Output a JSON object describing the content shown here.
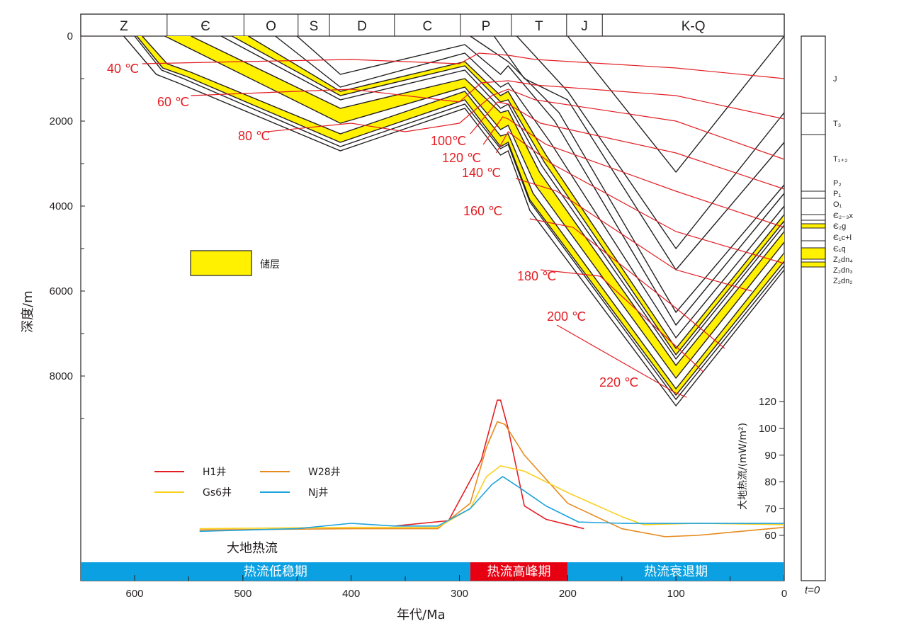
{
  "chart_data": {
    "type": "line",
    "title": "",
    "xlabel": "年代/Ma",
    "ylabel": "深度/m",
    "y2label": "大地热流/(mW/m²)",
    "xlim": [
      650,
      0
    ],
    "ylim": [
      0,
      9000
    ],
    "x_ticks": [
      600,
      500,
      400,
      300,
      200,
      100,
      0
    ],
    "y_ticks": [
      0,
      2000,
      4000,
      6000,
      8000
    ],
    "y2_ticks": [
      60,
      70,
      80,
      90,
      100,
      120
    ],
    "periods": [
      {
        "label": "Z",
        "from": 650,
        "to": 570
      },
      {
        "label": "Є",
        "from": 570,
        "to": 499
      },
      {
        "label": "O",
        "from": 499,
        "to": 449
      },
      {
        "label": "S",
        "from": 449,
        "to": 420
      },
      {
        "label": "D",
        "from": 420,
        "to": 360
      },
      {
        "label": "C",
        "from": 360,
        "to": 299
      },
      {
        "label": "P",
        "from": 299,
        "to": 252
      },
      {
        "label": "T",
        "from": 252,
        "to": 201
      },
      {
        "label": "J",
        "from": 201,
        "to": 168
      },
      {
        "label": "K-Q",
        "from": 168,
        "to": 0
      }
    ],
    "burial_layers": [
      {
        "name": "Z2dn2-base",
        "points": [
          [
            610,
            0
          ],
          [
            580,
            900
          ],
          [
            560,
            1100
          ],
          [
            410,
            2700
          ],
          [
            295,
            1700
          ],
          [
            262,
            2800
          ],
          [
            255,
            2700
          ],
          [
            235,
            4100
          ],
          [
            100,
            8700
          ],
          [
            0,
            5500
          ]
        ]
      },
      {
        "name": "Z2dn3-top",
        "points": [
          [
            600,
            0
          ],
          [
            575,
            800
          ],
          [
            555,
            1000
          ],
          [
            410,
            2600
          ],
          [
            295,
            1600
          ],
          [
            262,
            2650
          ],
          [
            255,
            2550
          ],
          [
            235,
            3900
          ],
          [
            100,
            8550
          ],
          [
            0,
            5400
          ]
        ]
      },
      {
        "name": "Z2dn4-base",
        "points": [
          [
            598,
            0
          ],
          [
            574,
            750
          ],
          [
            552,
            950
          ],
          [
            410,
            2500
          ],
          [
            295,
            1500
          ],
          [
            262,
            2600
          ],
          [
            255,
            2500
          ],
          [
            235,
            3850
          ],
          [
            100,
            8450
          ],
          [
            0,
            5300
          ]
        ]
      },
      {
        "name": "Z2dn4-top",
        "points": [
          [
            593,
            0
          ],
          [
            570,
            650
          ],
          [
            548,
            850
          ],
          [
            410,
            2300
          ],
          [
            295,
            1300
          ],
          [
            262,
            2350
          ],
          [
            255,
            2300
          ],
          [
            232,
            3700
          ],
          [
            100,
            8300
          ],
          [
            0,
            5100
          ]
        ]
      },
      {
        "name": "E1q-base",
        "points": [
          [
            572,
            0
          ],
          [
            410,
            2050
          ],
          [
            295,
            1200
          ],
          [
            262,
            2200
          ],
          [
            255,
            2100
          ],
          [
            230,
            3500
          ],
          [
            100,
            8050
          ],
          [
            0,
            4850
          ]
        ]
      },
      {
        "name": "E1q-top",
        "points": [
          [
            548,
            0
          ],
          [
            410,
            1700
          ],
          [
            295,
            1000
          ],
          [
            262,
            1800
          ],
          [
            255,
            1750
          ],
          [
            226,
            3200
          ],
          [
            100,
            7750
          ],
          [
            0,
            4600
          ]
        ]
      },
      {
        "name": "E1cl-top",
        "points": [
          [
            520,
            0
          ],
          [
            410,
            1500
          ],
          [
            295,
            800
          ],
          [
            262,
            1700
          ],
          [
            255,
            1600
          ],
          [
            224,
            3050
          ],
          [
            100,
            7600
          ],
          [
            0,
            4450
          ]
        ]
      },
      {
        "name": "E2g-base",
        "points": [
          [
            510,
            0
          ],
          [
            410,
            1400
          ],
          [
            295,
            700
          ],
          [
            262,
            1550
          ],
          [
            255,
            1500
          ],
          [
            222,
            2950
          ],
          [
            100,
            7500
          ],
          [
            0,
            4350
          ]
        ]
      },
      {
        "name": "E2g-top",
        "points": [
          [
            495,
            0
          ],
          [
            410,
            1300
          ],
          [
            295,
            600
          ],
          [
            262,
            1400
          ],
          [
            255,
            1300
          ],
          [
            220,
            2800
          ],
          [
            100,
            7350
          ],
          [
            0,
            4200
          ]
        ]
      },
      {
        "name": "E23x-top",
        "points": [
          [
            470,
            0
          ],
          [
            410,
            1200
          ],
          [
            295,
            400
          ],
          [
            262,
            1200
          ],
          [
            255,
            1100
          ],
          [
            216,
            2500
          ],
          [
            100,
            7100
          ],
          [
            0,
            4000
          ]
        ]
      },
      {
        "name": "O1-top",
        "points": [
          [
            450,
            0
          ],
          [
            410,
            900
          ],
          [
            295,
            200
          ],
          [
            262,
            900
          ],
          [
            255,
            700
          ],
          [
            212,
            2000
          ],
          [
            100,
            6800
          ],
          [
            0,
            3700
          ]
        ]
      },
      {
        "name": "P1-top",
        "points": [
          [
            290,
            0
          ],
          [
            255,
            600
          ],
          [
            208,
            1800
          ],
          [
            100,
            6500
          ],
          [
            0,
            3500
          ]
        ]
      },
      {
        "name": "P2-top",
        "points": [
          [
            268,
            0
          ],
          [
            240,
            1000
          ],
          [
            200,
            1500
          ],
          [
            100,
            5500
          ],
          [
            0,
            2500
          ]
        ]
      },
      {
        "name": "T12-top",
        "points": [
          [
            247,
            0
          ],
          [
            200,
            1300
          ],
          [
            100,
            5000
          ],
          [
            0,
            1800
          ]
        ]
      },
      {
        "name": "T3-top",
        "points": [
          [
            200,
            0
          ],
          [
            100,
            3200
          ],
          [
            0,
            0
          ]
        ]
      }
    ],
    "reservoir_bands": [
      {
        "upper": "Z2dn4-top",
        "lower": "Z2dn4-base"
      },
      {
        "upper": "E1q-top",
        "lower": "E1q-base"
      },
      {
        "upper": "E2g-top",
        "lower": "E2g-base"
      }
    ],
    "isotherms": [
      {
        "label": "40 ℃",
        "points": [
          [
            593,
            650
          ],
          [
            500,
            600
          ],
          [
            400,
            550
          ],
          [
            300,
            650
          ],
          [
            282,
            400
          ],
          [
            255,
            450
          ],
          [
            230,
            550
          ],
          [
            100,
            750
          ],
          [
            0,
            1000
          ]
        ]
      },
      {
        "label": "60 ℃",
        "points": [
          [
            548,
            1400
          ],
          [
            450,
            1300
          ],
          [
            400,
            1250
          ],
          [
            300,
            1550
          ],
          [
            280,
            1100
          ],
          [
            255,
            1050
          ],
          [
            230,
            1150
          ],
          [
            100,
            1400
          ],
          [
            0,
            1950
          ]
        ]
      },
      {
        "label": "80 ℃",
        "points": [
          [
            478,
            2250
          ],
          [
            400,
            2050
          ],
          [
            350,
            2250
          ],
          [
            300,
            2050
          ],
          [
            270,
            1400
          ],
          [
            255,
            1250
          ],
          [
            230,
            1500
          ],
          [
            100,
            2000
          ],
          [
            0,
            2900
          ]
        ]
      },
      {
        "label": "100℃",
        "points": [
          [
            290,
            2300
          ],
          [
            265,
            1550
          ],
          [
            255,
            1600
          ],
          [
            225,
            2050
          ],
          [
            100,
            2750
          ],
          [
            0,
            3600
          ]
        ]
      },
      {
        "label": "120 ℃",
        "points": [
          [
            278,
            2550
          ],
          [
            260,
            1900
          ],
          [
            255,
            1950
          ],
          [
            220,
            2550
          ],
          [
            100,
            3650
          ],
          [
            0,
            4500
          ]
        ]
      },
      {
        "label": "140 ℃",
        "points": [
          [
            266,
            2750
          ],
          [
            255,
            2250
          ],
          [
            215,
            3000
          ],
          [
            100,
            4600
          ],
          [
            0,
            5350
          ]
        ]
      },
      {
        "label": "160 ℃",
        "points": [
          [
            248,
            3350
          ],
          [
            210,
            3650
          ],
          [
            100,
            5500
          ],
          [
            30,
            6000
          ]
        ]
      },
      {
        "label": "180 ℃",
        "points": [
          [
            235,
            4300
          ],
          [
            195,
            4500
          ],
          [
            100,
            6400
          ],
          [
            55,
            7350
          ]
        ]
      },
      {
        "label": "200 ℃",
        "points": [
          [
            225,
            5500
          ],
          [
            170,
            5650
          ],
          [
            100,
            7300
          ],
          [
            75,
            7900
          ]
        ]
      },
      {
        "label": "220 ℃",
        "points": [
          [
            210,
            6800
          ],
          [
            100,
            8400
          ],
          [
            90,
            8500
          ]
        ]
      }
    ],
    "heat_flow_series": [
      {
        "name": "H1井",
        "color": "#e31e24",
        "points": [
          [
            360,
            63.5
          ],
          [
            310,
            65.5
          ],
          [
            280,
            88
          ],
          [
            265,
            121
          ],
          [
            262,
            121
          ],
          [
            255,
            100
          ],
          [
            240,
            71
          ],
          [
            220,
            66
          ],
          [
            185,
            62.5
          ]
        ]
      },
      {
        "name": "W28井",
        "color": "#e8891c",
        "points": [
          [
            540,
            62
          ],
          [
            400,
            62.5
          ],
          [
            320,
            62.5
          ],
          [
            290,
            72
          ],
          [
            275,
            93
          ],
          [
            265,
            105
          ],
          [
            258,
            103
          ],
          [
            240,
            90
          ],
          [
            200,
            72
          ],
          [
            150,
            62.5
          ],
          [
            110,
            59.5
          ],
          [
            80,
            60
          ],
          [
            0,
            63
          ]
        ]
      },
      {
        "name": "Gs6井",
        "color": "#f9d01c",
        "points": [
          [
            540,
            62.5
          ],
          [
            400,
            63
          ],
          [
            320,
            63
          ],
          [
            290,
            70
          ],
          [
            275,
            82
          ],
          [
            262,
            86
          ],
          [
            240,
            84
          ],
          [
            200,
            76
          ],
          [
            150,
            67
          ],
          [
            130,
            64
          ],
          [
            80,
            64.5
          ],
          [
            0,
            64
          ]
        ]
      },
      {
        "name": "Nj井",
        "color": "#1ea3dc",
        "points": [
          [
            540,
            61.5
          ],
          [
            450,
            62.5
          ],
          [
            400,
            64.5
          ],
          [
            360,
            63.5
          ],
          [
            320,
            63.5
          ],
          [
            290,
            70
          ],
          [
            270,
            79
          ],
          [
            260,
            82
          ],
          [
            245,
            78
          ],
          [
            220,
            71
          ],
          [
            190,
            65
          ],
          [
            150,
            64.5
          ],
          [
            0,
            64.5
          ]
        ]
      }
    ],
    "legend": {
      "reservoir": "储层",
      "placement": "middle-left"
    },
    "heat_flow_label": "大地热流",
    "phases": [
      {
        "label": "热流低稳期",
        "from": 650,
        "to": 290,
        "color": "#0aa0e1"
      },
      {
        "label": "热流高峰期",
        "from": 290,
        "to": 200,
        "color": "#e60012"
      },
      {
        "label": "热流衰退期",
        "from": 200,
        "to": 0,
        "color": "#0aa0e1"
      }
    ],
    "stratigraphic_column": {
      "footer": "t=0",
      "units": [
        {
          "label": "J"
        },
        {
          "label": "T₃"
        },
        {
          "label": "T₁₊₂"
        },
        {
          "label": "P₂"
        },
        {
          "label": "P₁"
        },
        {
          "label": "O₁"
        },
        {
          "label": "Є₂₋₃x"
        },
        {
          "label": "Є₂g"
        },
        {
          "label": "Є₁c+l"
        },
        {
          "label": "Є₁q"
        },
        {
          "label": "Z₂dn₄"
        },
        {
          "label": "Z₂dn₃"
        },
        {
          "label": "Z₂dn₂"
        }
      ]
    }
  }
}
